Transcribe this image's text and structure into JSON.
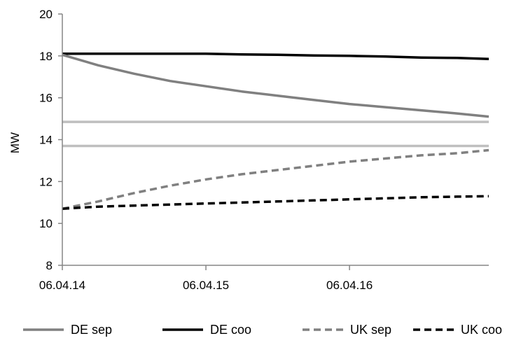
{
  "chart_data": {
    "type": "line",
    "title": "",
    "xlabel": "",
    "ylabel": "MW",
    "ylim": [
      8,
      20
    ],
    "yticks": [
      "8",
      "10",
      "12",
      "14",
      "16",
      "18",
      "20"
    ],
    "xticks": [
      "06.04.14",
      "06.04.15",
      "06.04.16"
    ],
    "x": [
      0,
      0.25,
      0.5,
      0.75,
      1.0,
      1.25,
      1.5,
      1.75,
      2.0,
      2.25,
      2.5,
      2.75,
      2.97
    ],
    "grid": false,
    "legend_position": "bottom",
    "series": [
      {
        "name": "DE sep",
        "color": "#808080",
        "dash": "solid",
        "values": [
          18.05,
          17.55,
          17.15,
          16.8,
          16.55,
          16.3,
          16.1,
          15.9,
          15.7,
          15.55,
          15.4,
          15.25,
          15.1
        ]
      },
      {
        "name": "DE coo",
        "color": "#000000",
        "dash": "solid",
        "values": [
          18.1,
          18.1,
          18.1,
          18.1,
          18.1,
          18.07,
          18.05,
          18.02,
          18.0,
          17.97,
          17.92,
          17.9,
          17.85
        ]
      },
      {
        "name": "UK sep",
        "color": "#808080",
        "dash": "dashed",
        "values": [
          10.7,
          11.05,
          11.45,
          11.8,
          12.1,
          12.35,
          12.55,
          12.75,
          12.95,
          13.1,
          13.25,
          13.35,
          13.5
        ]
      },
      {
        "name": "UK coo",
        "color": "#000000",
        "dash": "dashed",
        "values": [
          10.7,
          10.8,
          10.85,
          10.9,
          10.95,
          11.0,
          11.05,
          11.1,
          11.15,
          11.2,
          11.25,
          11.28,
          11.3
        ]
      }
    ],
    "reference_lines": [
      {
        "y": 14.85,
        "color": "#bfbfbf"
      },
      {
        "y": 13.7,
        "color": "#bfbfbf"
      }
    ]
  }
}
